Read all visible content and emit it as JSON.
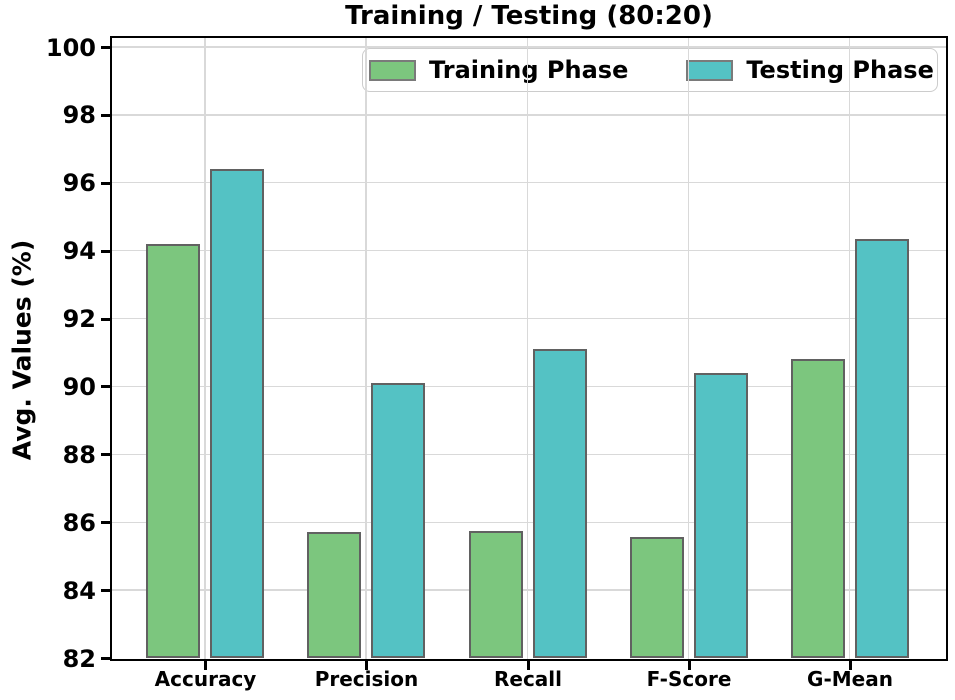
{
  "chart_data": {
    "type": "bar",
    "title": "Training / Testing (80:20)",
    "ylabel": "Avg. Values (%)",
    "xlabel": "",
    "categories": [
      "Accuracy",
      "Precision",
      "Recall",
      "F-Score",
      "G-Mean"
    ],
    "series": [
      {
        "name": "Training Phase",
        "color": "#7cc67e",
        "edge_color": "#616161",
        "values": [
          94.2,
          85.7,
          85.75,
          85.55,
          90.8
        ]
      },
      {
        "name": "Testing Phase",
        "color": "#54c2c4",
        "edge_color": "#616161",
        "values": [
          96.4,
          90.1,
          91.1,
          90.4,
          94.35
        ]
      }
    ],
    "ylim": [
      82,
      100.3
    ],
    "yticks": [
      82,
      84,
      86,
      88,
      90,
      92,
      94,
      96,
      98,
      100
    ],
    "grid": true,
    "grid_color": "#d9d9d9",
    "legend_position": "upper center",
    "axis_color": "#000000",
    "background": "#ffffff"
  }
}
